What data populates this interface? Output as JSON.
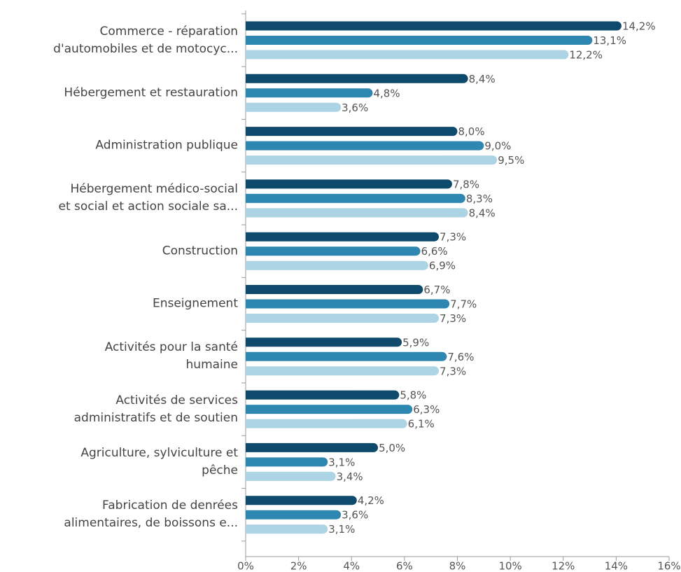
{
  "chart_data": {
    "type": "bar",
    "orientation": "horizontal",
    "categories": [
      "Commerce -  réparation\nd'automobiles et de motocyc...",
      "Hébergement et restauration",
      "Administration publique",
      "Hébergement médico-social\net social et action sociale sa...",
      "Construction",
      "Enseignement",
      "Activités pour la santé\nhumaine",
      "Activités de services\nadministratifs et de soutien",
      "Agriculture, sylviculture et\npêche",
      "Fabrication de denrées\nalimentaires, de boissons e..."
    ],
    "series": [
      {
        "color": "#0e4a6c",
        "values": [
          14.2,
          8.4,
          8.0,
          7.8,
          7.3,
          6.7,
          5.9,
          5.8,
          5.0,
          4.2
        ],
        "value_labels": [
          "14,2%",
          "8,4%",
          "8,0%",
          "7,8%",
          "7,3%",
          "6,7%",
          "5,9%",
          "5,8%",
          "5,0%",
          "4,2%"
        ]
      },
      {
        "color": "#2d87b1",
        "values": [
          13.1,
          4.8,
          9.0,
          8.3,
          6.6,
          7.7,
          7.6,
          6.3,
          3.1,
          3.6
        ],
        "value_labels": [
          "13,1%",
          "4,8%",
          "9,0%",
          "8,3%",
          "6,6%",
          "7,7%",
          "7,6%",
          "6,3%",
          "3,1%",
          "3,6%"
        ]
      },
      {
        "color": "#acd4e4",
        "values": [
          12.2,
          3.6,
          9.5,
          8.4,
          6.9,
          7.3,
          7.3,
          6.1,
          3.4,
          3.1
        ],
        "value_labels": [
          "12,2%",
          "3,6%",
          "9,5%",
          "8,4%",
          "6,9%",
          "7,3%",
          "7,3%",
          "6,1%",
          "3,4%",
          "3,1%"
        ]
      }
    ],
    "xlim": [
      0,
      16
    ],
    "xticks": [
      {
        "value": 0,
        "label": "0%"
      },
      {
        "value": 2,
        "label": "2%"
      },
      {
        "value": 4,
        "label": "4%"
      },
      {
        "value": 6,
        "label": "6%"
      },
      {
        "value": 8,
        "label": "8%"
      },
      {
        "value": 10,
        "label": "10%"
      },
      {
        "value": 12,
        "label": "12%"
      },
      {
        "value": 14,
        "label": "14%"
      },
      {
        "value": 16,
        "label": "16%"
      }
    ]
  }
}
